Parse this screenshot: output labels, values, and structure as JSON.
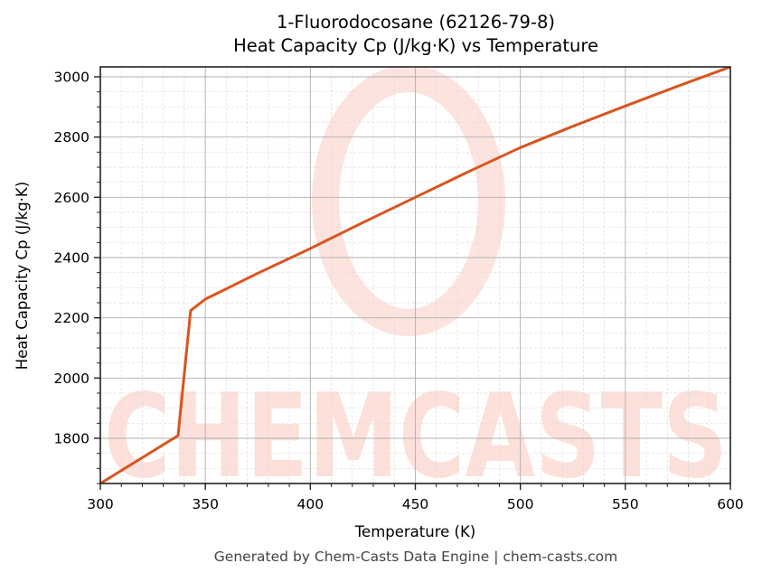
{
  "title": {
    "line1": "1-Fluorodocosane (62126-79-8)",
    "line2": "Heat Capacity Cp (J/kg·K) vs Temperature"
  },
  "footer": "Generated by Chem-Casts Data Engine | chem-casts.com",
  "watermark": "CHEMCASTS",
  "colors": {
    "line": "#d9541e",
    "watermark": "#fde0da",
    "major_grid": "#b0b0b0",
    "minor_grid": "#dddddd",
    "axis": "#222222"
  },
  "chart_data": {
    "type": "line",
    "title": "1-Fluorodocosane (62126-79-8)\nHeat Capacity Cp (J/kg·K) vs Temperature",
    "xlabel": "Temperature (K)",
    "ylabel": "Heat Capacity Cp (J/kg·K)",
    "xlim": [
      300,
      600
    ],
    "ylim": [
      1650,
      3033
    ],
    "xticks": [
      300,
      350,
      400,
      450,
      500,
      550,
      600
    ],
    "yticks": [
      1800,
      2000,
      2200,
      2400,
      2600,
      2800,
      3000
    ],
    "grid": true,
    "minor_grid": true,
    "legend": null,
    "series": [
      {
        "name": "Cp",
        "x": [
          300,
          337,
          343,
          350,
          375,
          400,
          425,
          450,
          475,
          500,
          525,
          550,
          575,
          600
        ],
        "values": [
          1650,
          1809,
          2224,
          2262,
          2348,
          2430,
          2516,
          2600,
          2684,
          2765,
          2836,
          2903,
          2969,
          3033
        ]
      }
    ]
  }
}
